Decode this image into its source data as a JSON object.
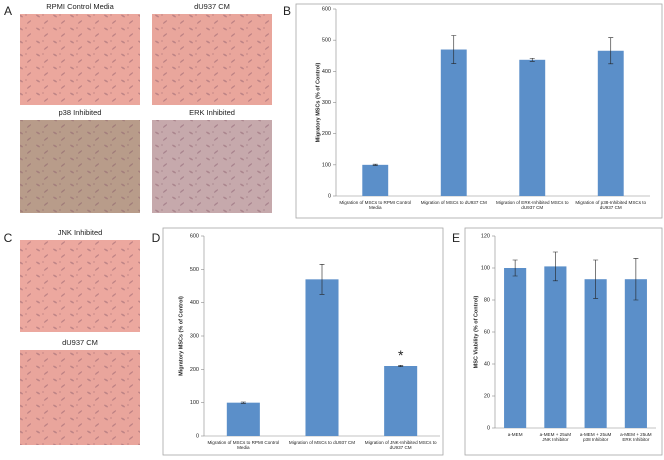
{
  "panels": [
    "A",
    "B",
    "C",
    "D",
    "E"
  ],
  "images": [
    "RPMI Control Media",
    "dU937 CM",
    "p38 Inhibited",
    "ERK Inhibited",
    "JNK Inhibited",
    "dU937 CM"
  ],
  "chart_data": [
    {
      "type": "bar",
      "ylabel": "Migratory MSCs (% of Control)",
      "categories": [
        "Migration of MSCs to RPMI Control Media",
        "Migration of MSCs to dU937 CM",
        "Migration of ERK-Inhibited MSCs to dU937 CM",
        "Migration of p38-Inhibited MSCs to dU937 CM"
      ],
      "values": [
        100,
        470,
        437,
        466
      ],
      "errors": [
        2,
        45,
        5,
        42
      ],
      "color": "#5b8fc9",
      "ylim": [
        0,
        600
      ],
      "yticks": [
        0,
        100,
        200,
        300,
        400,
        500,
        600
      ],
      "grid": false
    },
    {
      "type": "bar",
      "ylabel": "Migratory MSCs (% of Control)",
      "categories": [
        "Migration of MSCs to RPMI Control Media",
        "Migration of MSCs to dU937 CM",
        "Migration of JNK-Inhibited MSCs to dU937 CM"
      ],
      "values": [
        100,
        470,
        210
      ],
      "errors": [
        2,
        45,
        2
      ],
      "color": "#5b8fc9",
      "annotation": "*",
      "ylim": [
        0,
        600
      ],
      "yticks": [
        0,
        100,
        200,
        300,
        400,
        500,
        600
      ],
      "grid": false
    },
    {
      "type": "bar",
      "ylabel": "MSC Viability (% of Control)",
      "categories": [
        "a-MEM",
        "a-MEM + 25uM JNK Inhibitor",
        "a-MEM + 25uM p38 Inhibitor",
        "a-MEM + 25uM ERK Inhibitor"
      ],
      "values": [
        100,
        101,
        93,
        93
      ],
      "errors": [
        5,
        9,
        12,
        13
      ],
      "color": "#5b8fc9",
      "ylim": [
        0,
        120
      ],
      "yticks": [
        0,
        20,
        40,
        60,
        80,
        100,
        120
      ],
      "grid": false
    }
  ]
}
